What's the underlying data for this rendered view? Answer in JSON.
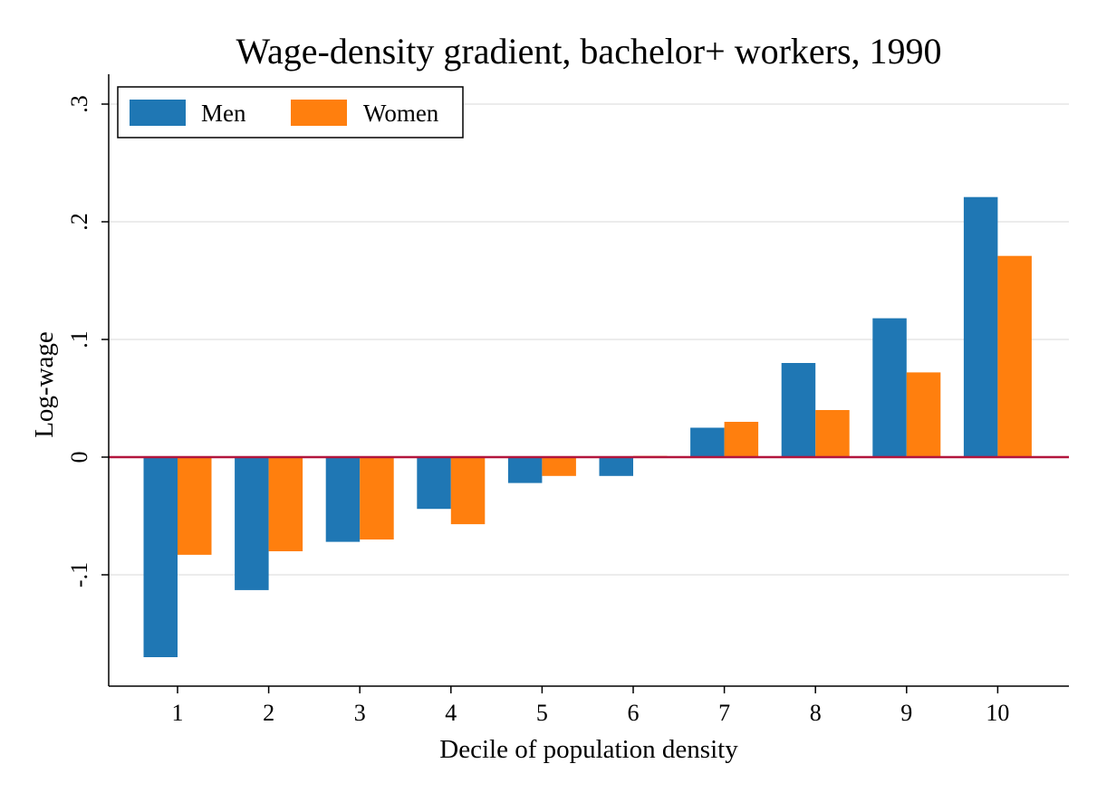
{
  "chart_data": {
    "type": "bar",
    "title": "Wage-density gradient, bachelor+ workers, 1990",
    "xlabel": "Decile of population density",
    "ylabel": "Log-wage",
    "categories": [
      "1",
      "2",
      "3",
      "4",
      "5",
      "6",
      "7",
      "8",
      "9",
      "10"
    ],
    "series": [
      {
        "name": "Men",
        "color": "#1f77b4",
        "values": [
          -0.17,
          -0.113,
          -0.072,
          -0.044,
          -0.022,
          -0.016,
          0.025,
          0.08,
          0.118,
          0.221
        ]
      },
      {
        "name": "Women",
        "color": "#ff7f0e",
        "values": [
          -0.083,
          -0.08,
          -0.07,
          -0.057,
          -0.016,
          0.001,
          0.03,
          0.04,
          0.072,
          0.171
        ]
      }
    ],
    "ylim": [
      -0.195,
      0.32
    ],
    "yticks": [
      {
        "value": -0.1,
        "label": "-.1"
      },
      {
        "value": 0,
        "label": "0"
      },
      {
        "value": 0.1,
        "label": ".1"
      },
      {
        "value": 0.2,
        "label": ".2"
      },
      {
        "value": 0.3,
        "label": ".3"
      }
    ],
    "grid": true,
    "gridline_color": "#e5e5e5",
    "zero_line_color": "#b2153d",
    "legend_position": "top-left"
  }
}
